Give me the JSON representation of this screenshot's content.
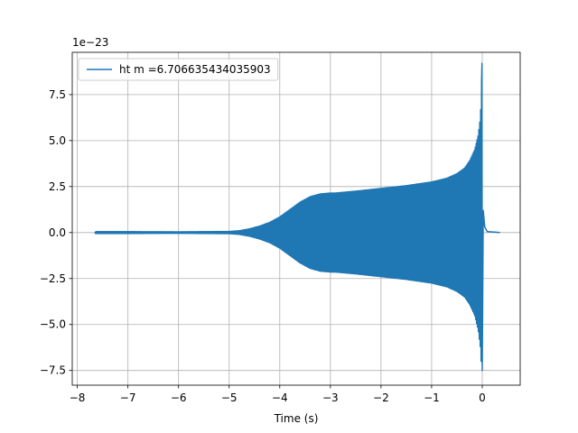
{
  "chart_data": {
    "type": "line",
    "title": "",
    "xlabel": "Time (s)",
    "ylabel": "",
    "offset_text": "1e−23",
    "xlim": [
      -8.1,
      0.75
    ],
    "ylim": [
      -8.3,
      9.8
    ],
    "y_scale_factor": "1e-23",
    "grid": true,
    "legend_position": "top-left",
    "x_ticks": [
      -8,
      -7,
      -6,
      -5,
      -4,
      -3,
      -2,
      -1,
      0
    ],
    "x_tick_labels": [
      "−8",
      "−7",
      "−6",
      "−5",
      "−4",
      "−3",
      "−2",
      "−1",
      "0"
    ],
    "y_ticks": [
      -7.5,
      -5.0,
      -2.5,
      0.0,
      2.5,
      5.0,
      7.5
    ],
    "y_tick_labels": [
      "−7.5",
      "−5.0",
      "−2.5",
      "0.0",
      "2.5",
      "5.0",
      "7.5"
    ],
    "series": [
      {
        "name": "ht m =6.706635434035903",
        "color": "#1f77b4",
        "style": "dense-oscillation-envelope",
        "envelope_x": [
          -7.65,
          -7.0,
          -6.0,
          -5.5,
          -5.0,
          -4.8,
          -4.6,
          -4.4,
          -4.2,
          -4.0,
          -3.8,
          -3.6,
          -3.4,
          -3.2,
          -3.0,
          -2.9,
          -2.5,
          -2.0,
          -1.5,
          -1.0,
          -0.7,
          -0.5,
          -0.35,
          -0.25,
          -0.15,
          -0.08,
          -0.04,
          -0.02,
          -0.005
        ],
        "envelope_upper": [
          0.05,
          0.05,
          0.04,
          0.05,
          0.06,
          0.1,
          0.2,
          0.35,
          0.55,
          0.85,
          1.25,
          1.65,
          1.95,
          2.1,
          2.15,
          2.15,
          2.25,
          2.4,
          2.55,
          2.75,
          2.95,
          3.2,
          3.5,
          3.9,
          4.5,
          5.3,
          6.2,
          7.3,
          9.2
        ],
        "envelope_lower": [
          -0.05,
          -0.05,
          -0.04,
          -0.05,
          -0.06,
          -0.1,
          -0.2,
          -0.35,
          -0.55,
          -0.85,
          -1.25,
          -1.65,
          -1.95,
          -2.1,
          -2.15,
          -2.15,
          -2.25,
          -2.4,
          -2.55,
          -2.75,
          -2.95,
          -3.2,
          -3.5,
          -3.9,
          -4.5,
          -5.3,
          -6.2,
          -7.1,
          -7.5
        ],
        "ringdown_x": [
          0.0,
          0.02,
          0.05,
          0.1,
          0.35
        ],
        "ringdown_value": [
          -7.5,
          1.2,
          0.3,
          0.05,
          0.0
        ]
      }
    ]
  }
}
